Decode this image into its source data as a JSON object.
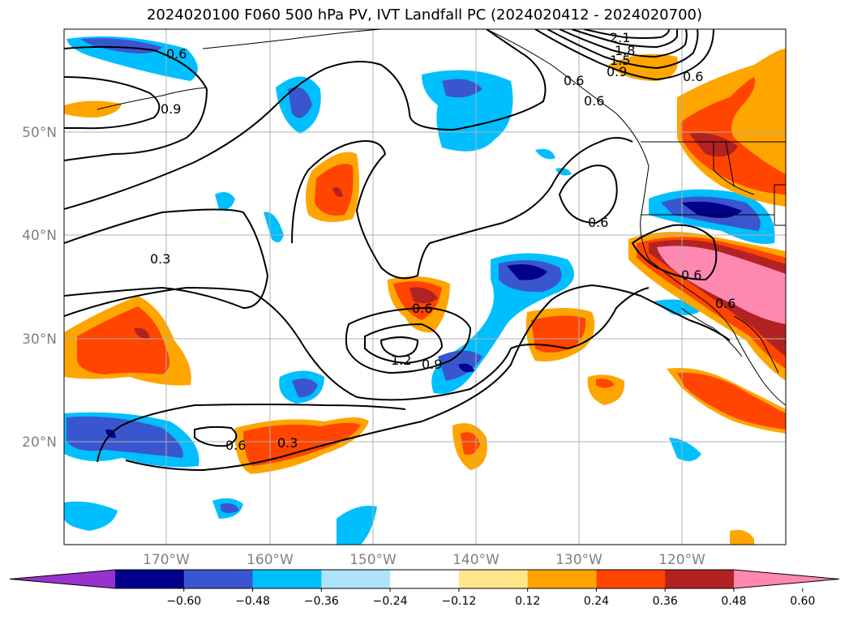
{
  "title": "2024020100 F060 500 hPa PV, IVT Landfall PC (2024020412 - 2024020700)",
  "latitude_labels": [
    "50°N",
    "40°N",
    "30°N",
    "20°N"
  ],
  "longitude_labels": [
    "170°W",
    "160°W",
    "150°W",
    "140°W",
    "130°W",
    "120°W"
  ],
  "colorbar": {
    "ticks": [
      "−0.60",
      "−0.48",
      "−0.36",
      "−0.24",
      "−0.12",
      "0.12",
      "0.24",
      "0.36",
      "0.48",
      "0.60"
    ],
    "colors": [
      "#9932cc",
      "#00008b",
      "#3a56cf",
      "#00bfff",
      "#aee3fb",
      "#ffffff",
      "#ffe68a",
      "#ffa500",
      "#ff4500",
      "#b22222",
      "#ff88b0"
    ],
    "extend": "both"
  },
  "contour_labels": [
    "0.6",
    "0.9",
    "0.3",
    "0.6",
    "0.6",
    "0.6",
    "0.9",
    "1.2",
    "0.6",
    "0.3",
    "2.1",
    "1.8",
    "1.5",
    "0.9",
    "0.6",
    "0.6",
    "0.6",
    "0.6"
  ]
}
